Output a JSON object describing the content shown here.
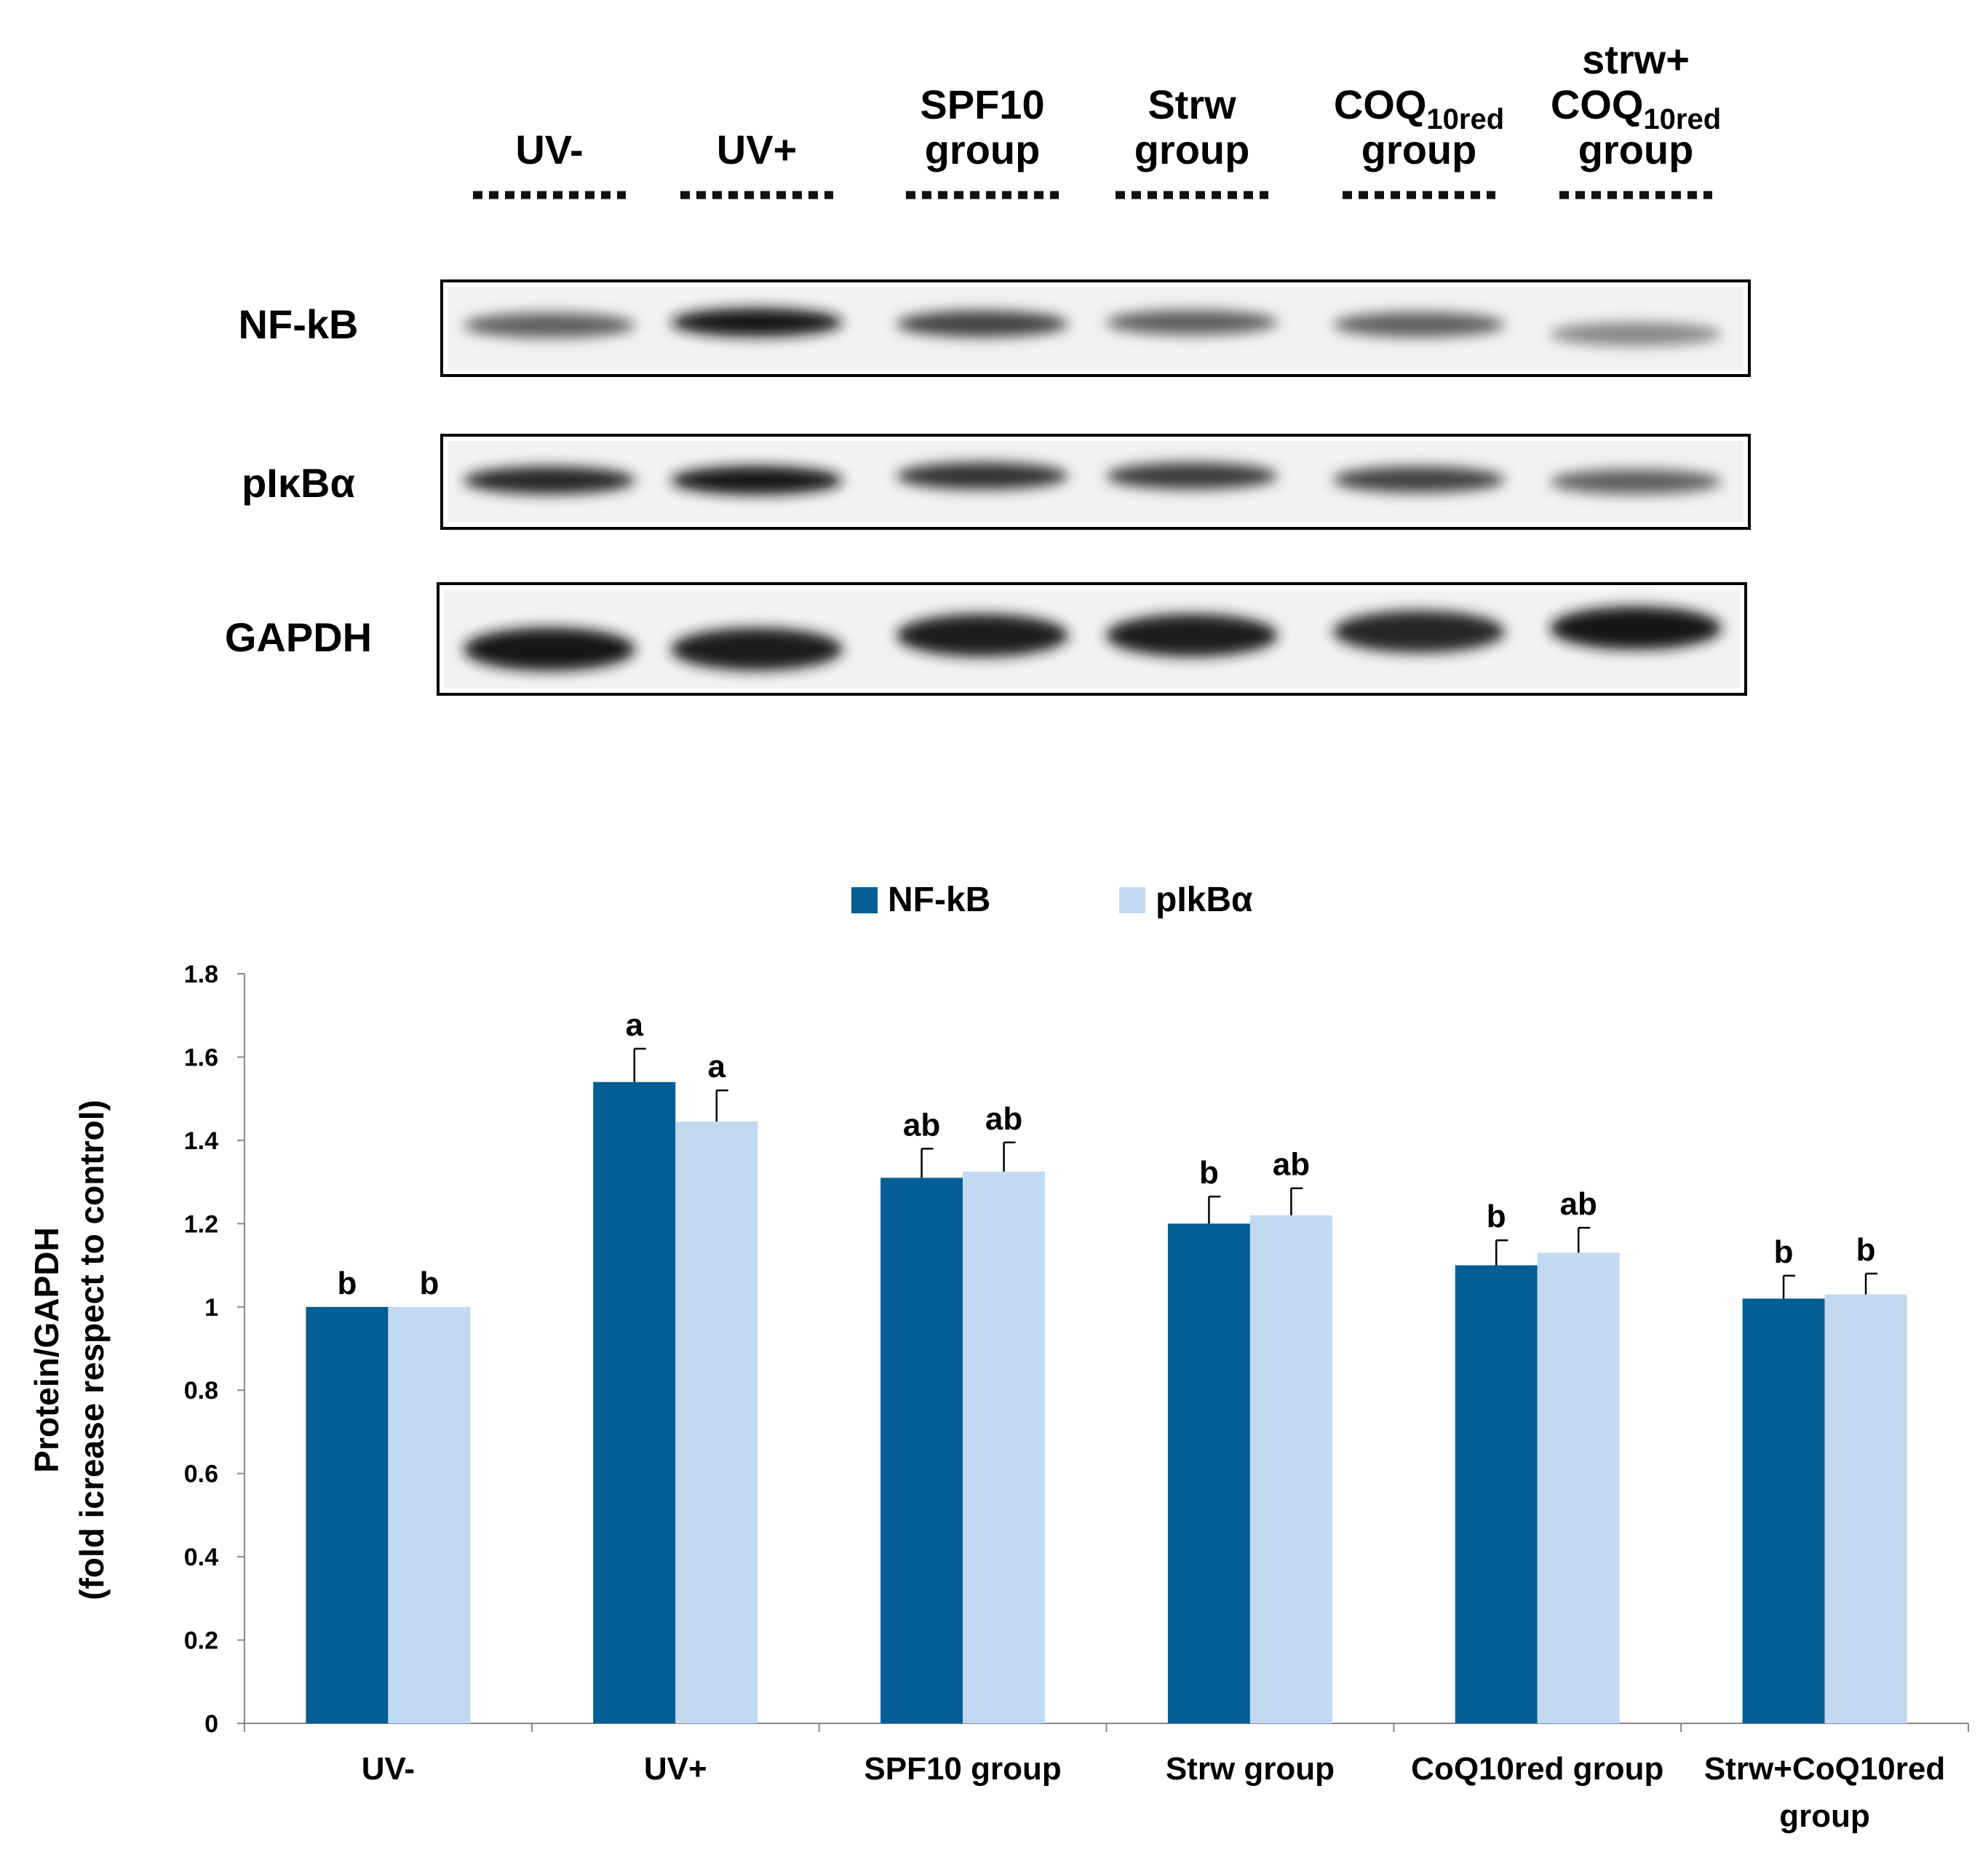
{
  "blot": {
    "lanes": [
      {
        "lines": [
          "UV-"
        ]
      },
      {
        "lines": [
          "UV+"
        ]
      },
      {
        "lines": [
          "SPF10",
          "group"
        ]
      },
      {
        "lines": [
          "Strw",
          "group"
        ]
      },
      {
        "lines": [
          "COQ",
          "group"
        ],
        "sub": "10red"
      },
      {
        "lines": [
          "strw+",
          "COQ",
          "group"
        ],
        "sub": "10red"
      }
    ],
    "rows": [
      "NF-kB",
      "pIκBα",
      "GAPDH"
    ],
    "band_intensity": {
      "NF-kB": [
        0.55,
        0.95,
        0.7,
        0.55,
        0.55,
        0.35
      ],
      "pIκBα": [
        0.85,
        0.95,
        0.8,
        0.75,
        0.7,
        0.55
      ],
      "GAPDH": [
        0.95,
        0.9,
        0.9,
        0.9,
        0.85,
        0.95
      ]
    }
  },
  "chart_data": {
    "type": "bar",
    "categories": [
      "UV-",
      "UV+",
      "SPF10 group",
      "Strw group",
      "CoQ10red group",
      "Strw+CoQ10red group"
    ],
    "category_lines": [
      [
        "UV-"
      ],
      [
        "UV+"
      ],
      [
        "SPF10 group"
      ],
      [
        "Strw group"
      ],
      [
        "CoQ10red group"
      ],
      [
        "Strw+CoQ10red",
        "group"
      ]
    ],
    "series": [
      {
        "name": "NF-kB",
        "color": "#035e95",
        "values": [
          1.0,
          1.54,
          1.31,
          1.2,
          1.1,
          1.02
        ],
        "errors": [
          0,
          0.08,
          0.07,
          0.065,
          0.06,
          0.055
        ],
        "labels": [
          "b",
          "a",
          "ab",
          "b",
          "b",
          "b"
        ]
      },
      {
        "name": "pIkBα",
        "color": "#c2d9f1",
        "values": [
          1.0,
          1.445,
          1.325,
          1.22,
          1.13,
          1.03
        ],
        "errors": [
          0,
          0.075,
          0.07,
          0.065,
          0.06,
          0.05
        ],
        "labels": [
          "b",
          "a",
          "ab",
          "ab",
          "ab",
          "b"
        ]
      }
    ],
    "ylabel": [
      "Protein/GAPDH",
      "(fold icrease respect to control)"
    ],
    "ylim": [
      0,
      1.8
    ],
    "yticks": [
      0,
      0.2,
      0.4,
      0.6,
      0.8,
      1,
      1.2,
      1.4,
      1.6,
      1.8
    ],
    "ytick_labels": [
      "0",
      "0.2",
      "0.4",
      "0.6",
      "0.8",
      "1",
      "1.2",
      "1.4",
      "1.6",
      "1.8"
    ],
    "legend": "top-center",
    "grid": false
  }
}
